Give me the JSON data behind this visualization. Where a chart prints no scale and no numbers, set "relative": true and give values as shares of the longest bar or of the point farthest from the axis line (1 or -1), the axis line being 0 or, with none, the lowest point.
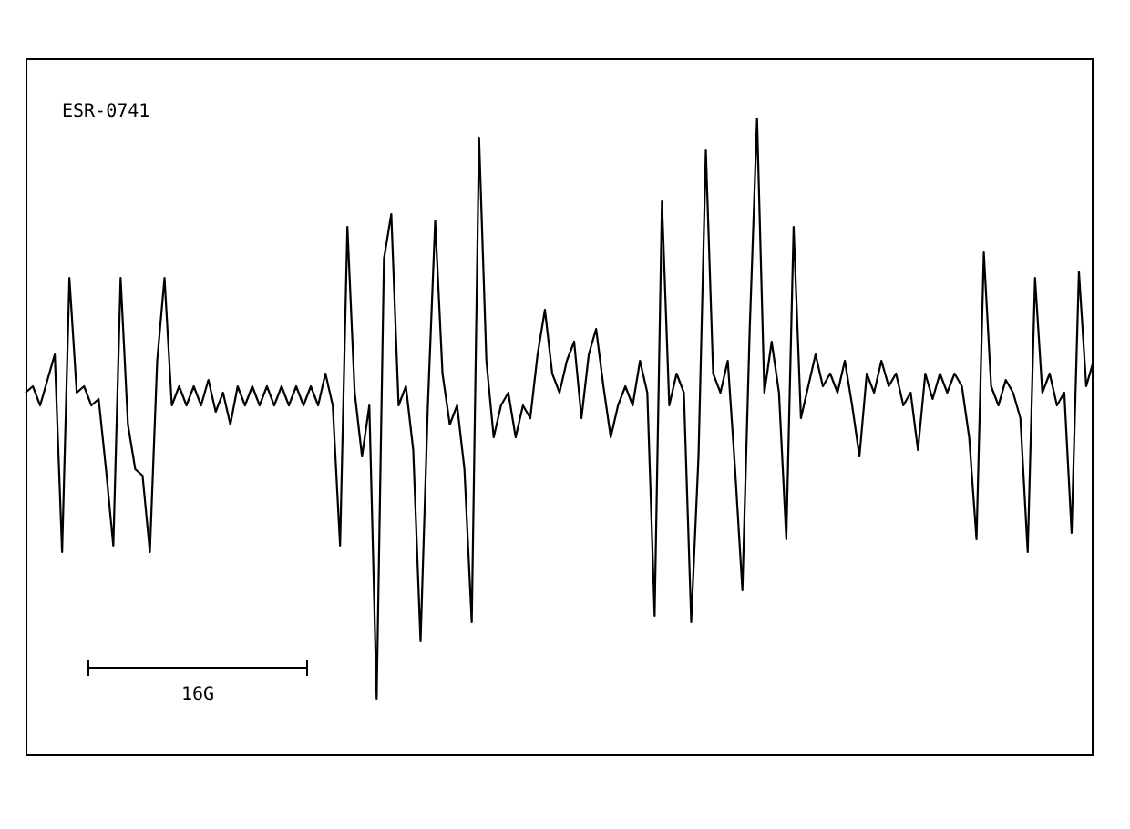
{
  "chart_data": {
    "type": "line",
    "title": "ESR-0741",
    "annotations": [
      "16G"
    ],
    "relative": true,
    "grid": false,
    "legend": false,
    "marker": "none",
    "line_style": "solid",
    "categories": [
      null,
      null,
      null,
      null,
      null,
      null,
      null,
      null,
      null,
      null,
      null,
      null,
      null,
      null,
      null,
      null,
      null,
      null,
      null,
      null,
      null,
      null,
      null,
      null,
      null,
      null,
      null,
      null,
      null,
      null,
      null,
      null,
      null,
      null,
      null,
      null,
      null,
      null,
      null,
      null,
      null,
      null,
      null,
      null,
      null,
      null,
      null,
      null,
      null,
      null,
      null,
      null,
      null,
      null,
      null,
      null,
      null,
      null,
      null,
      null,
      null,
      null,
      null,
      null,
      null,
      null,
      null,
      null,
      null,
      null,
      null,
      null,
      null,
      null,
      null,
      null,
      null,
      null,
      null,
      null,
      null,
      null,
      null,
      null,
      null,
      null,
      null,
      null,
      null,
      null,
      null,
      null,
      null,
      null,
      null,
      null,
      null,
      null,
      null,
      null,
      null,
      null,
      null,
      null,
      null,
      null,
      null,
      null,
      null,
      null,
      null,
      null,
      null,
      null,
      null,
      null,
      null,
      null,
      null,
      null,
      null,
      null,
      null,
      null,
      null,
      null,
      null,
      null,
      null,
      null,
      null,
      null,
      null,
      null,
      null,
      null,
      null,
      null,
      null,
      null,
      null,
      null,
      null,
      null,
      null,
      null,
      null
    ],
    "series": [
      {
        "color": "#000000",
        "values": [
          0.57,
          0.58,
          0.55,
          0.59,
          0.63,
          0.32,
          0.75,
          0.57,
          0.58,
          0.55,
          0.56,
          0.45,
          0.33,
          0.75,
          0.52,
          0.45,
          0.44,
          0.32,
          0.62,
          0.75,
          0.55,
          0.58,
          0.55,
          0.58,
          0.55,
          0.59,
          0.54,
          0.57,
          0.52,
          0.58,
          0.55,
          0.58,
          0.55,
          0.58,
          0.55,
          0.58,
          0.55,
          0.58,
          0.55,
          0.58,
          0.55,
          0.6,
          0.55,
          0.33,
          0.83,
          0.57,
          0.47,
          0.55,
          0.09,
          0.78,
          0.85,
          0.55,
          0.58,
          0.48,
          0.18,
          0.55,
          0.84,
          0.6,
          0.52,
          0.55,
          0.45,
          0.21,
          0.97,
          0.62,
          0.5,
          0.55,
          0.57,
          0.5,
          0.55,
          0.53,
          0.63,
          0.7,
          0.6,
          0.57,
          0.62,
          0.65,
          0.53,
          0.63,
          0.67,
          0.58,
          0.5,
          0.55,
          0.58,
          0.55,
          0.62,
          0.57,
          0.22,
          0.87,
          0.55,
          0.6,
          0.57,
          0.21,
          0.47,
          0.95,
          0.6,
          0.57,
          0.62,
          0.45,
          0.26,
          0.67,
          1,
          0.57,
          0.65,
          0.57,
          0.34,
          0.83,
          0.53,
          0.58,
          0.63,
          0.58,
          0.6,
          0.57,
          0.62,
          0.55,
          0.47,
          0.6,
          0.57,
          0.62,
          0.58,
          0.6,
          0.55,
          0.57,
          0.48,
          0.6,
          0.56,
          0.6,
          0.57,
          0.6,
          0.58,
          0.5,
          0.34,
          0.79,
          0.58,
          0.55,
          0.59,
          0.57,
          0.53,
          0.32,
          0.75,
          0.57,
          0.6,
          0.55,
          0.57,
          0.35,
          0.76,
          0.58,
          0.62
        ]
      }
    ]
  }
}
